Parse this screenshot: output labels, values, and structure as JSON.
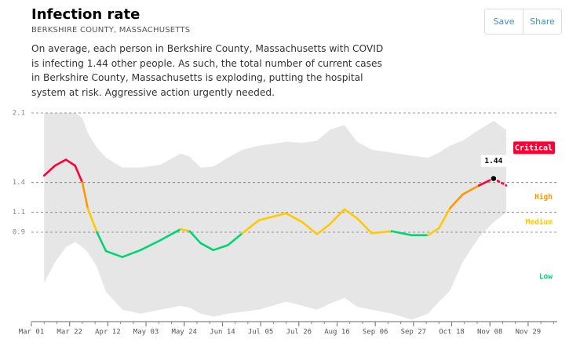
{
  "chart_data": {
    "type": "line",
    "title": "Infection rate",
    "subtitle": "BERKSHIRE COUNTY, MASSACHUSETTS",
    "description": "On average, each person in Berkshire County, Massachusetts with COVID is infecting 1.44 other people. As such, the total number of current cases in Berkshire County, Massachusetts is exploding, putting the hospital system at risk. Aggressive action urgently needed.",
    "x": [
      7,
      13,
      19,
      24,
      28,
      31,
      36,
      41,
      50,
      60,
      71,
      82,
      87,
      93,
      100,
      108,
      116,
      125,
      140,
      149,
      157,
      164,
      172,
      179,
      187,
      198,
      209,
      218,
      224,
      230,
      237,
      246,
      254,
      261
    ],
    "values": [
      1.47,
      1.57,
      1.63,
      1.57,
      1.4,
      1.14,
      0.9,
      0.71,
      0.65,
      0.72,
      0.82,
      0.93,
      0.91,
      0.79,
      0.72,
      0.77,
      0.89,
      1.02,
      1.09,
      1.0,
      0.88,
      0.98,
      1.13,
      1.04,
      0.89,
      0.91,
      0.87,
      0.87,
      0.94,
      1.14,
      1.28,
      1.37,
      1.44,
      1.37
    ],
    "upper": [
      2.1,
      2.1,
      2.1,
      2.1,
      2.05,
      1.9,
      1.75,
      1.65,
      1.55,
      1.55,
      1.58,
      1.69,
      1.66,
      1.55,
      1.56,
      1.65,
      1.73,
      1.77,
      1.81,
      1.8,
      1.82,
      1.93,
      1.98,
      1.81,
      1.73,
      1.7,
      1.67,
      1.65,
      1.7,
      1.77,
      1.82,
      1.93,
      2.02,
      1.93
    ],
    "lower": [
      0.39,
      0.6,
      0.75,
      0.8,
      0.75,
      0.7,
      0.55,
      0.3,
      0.12,
      0.08,
      0.12,
      0.16,
      0.14,
      0.08,
      0.05,
      0.08,
      0.1,
      0.12,
      0.2,
      0.16,
      0.12,
      0.18,
      0.24,
      0.15,
      0.12,
      0.08,
      0.02,
      0.08,
      0.2,
      0.31,
      0.6,
      0.85,
      1.0,
      1.1
    ],
    "band_color": "#e6e6e6",
    "zones": [
      {
        "name": "Low",
        "color": "#00d474",
        "min": 0,
        "max": 0.9
      },
      {
        "name": "Medium",
        "color": "#ffc900",
        "min": 0.9,
        "max": 1.1
      },
      {
        "name": "High",
        "color": "#ff9800",
        "min": 1.1,
        "max": 1.4
      },
      {
        "name": "Critical",
        "color": "#ff0034",
        "min": 1.4,
        "max": 2.1
      }
    ],
    "marker": {
      "x": 254,
      "value": 1.44
    },
    "xlim": [
      0,
      289
    ],
    "ylim": [
      0,
      2.1
    ],
    "yticks": [
      0.9,
      1.1,
      1.4,
      2.1
    ],
    "xticks": [
      {
        "value": 0,
        "label": "Mar 01"
      },
      {
        "value": 21,
        "label": "Mar 22"
      },
      {
        "value": 42,
        "label": "Apr 12"
      },
      {
        "value": 63,
        "label": "May 03"
      },
      {
        "value": 84,
        "label": "May 24"
      },
      {
        "value": 105,
        "label": "Jun 14"
      },
      {
        "value": 126,
        "label": "Jul 05"
      },
      {
        "value": 147,
        "label": "Jul 26"
      },
      {
        "value": 168,
        "label": "Aug 16"
      },
      {
        "value": 189,
        "label": "Sep 06"
      },
      {
        "value": 210,
        "label": "Sep 27"
      },
      {
        "value": 231,
        "label": "Oct 18"
      },
      {
        "value": 252,
        "label": "Nov 08"
      },
      {
        "value": 273,
        "label": "Nov 29"
      }
    ],
    "grid": true
  },
  "buttons": [
    "Save",
    "Share"
  ]
}
